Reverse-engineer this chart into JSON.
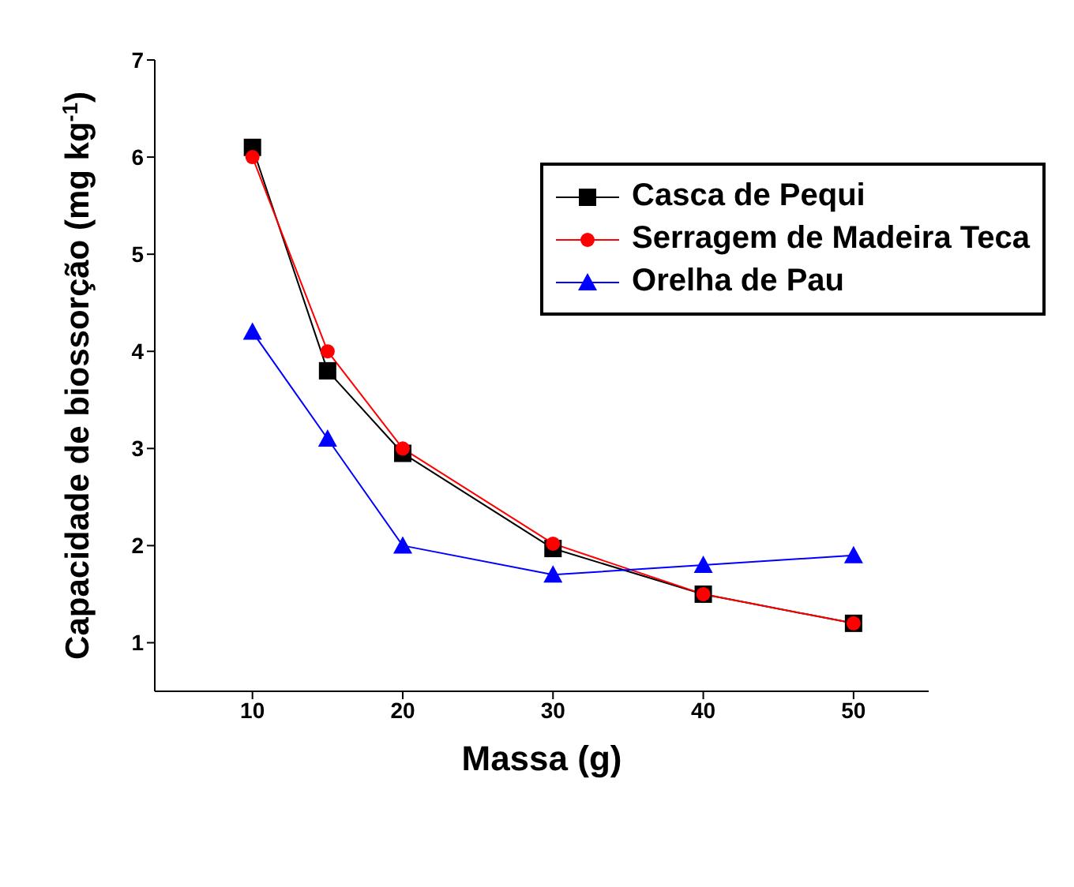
{
  "chart_data": {
    "type": "line",
    "xlabel": "Massa (g)",
    "ylabel": "Capacidade de biossorção (mg kg$^{-1}$)",
    "x": [
      10,
      15,
      20,
      30,
      40,
      50
    ],
    "series": [
      {
        "name": "Casca de Pequi",
        "color": "#000000",
        "values": [
          6.1,
          3.8,
          2.95,
          1.97,
          1.5,
          1.2
        ],
        "marker": "square"
      },
      {
        "name": "Serragem de Madeira Teca",
        "color": "#ff0000",
        "values": [
          6.0,
          4.0,
          3.0,
          2.02,
          1.5,
          1.2
        ],
        "marker": "circle"
      },
      {
        "name": "Orelha de Pau",
        "color": "#0000ff",
        "values": [
          4.2,
          3.1,
          2.0,
          1.7,
          1.8,
          1.9
        ],
        "marker": "triangle"
      }
    ],
    "xlim": [
      3.5,
      55
    ],
    "xticks": [
      10,
      20,
      30,
      40,
      50
    ],
    "ylim": [
      0.5,
      7
    ],
    "yticks": [
      1,
      2,
      3,
      4,
      5,
      6,
      7
    ],
    "grid": false,
    "legend": "top right",
    "line_style": "solid"
  }
}
